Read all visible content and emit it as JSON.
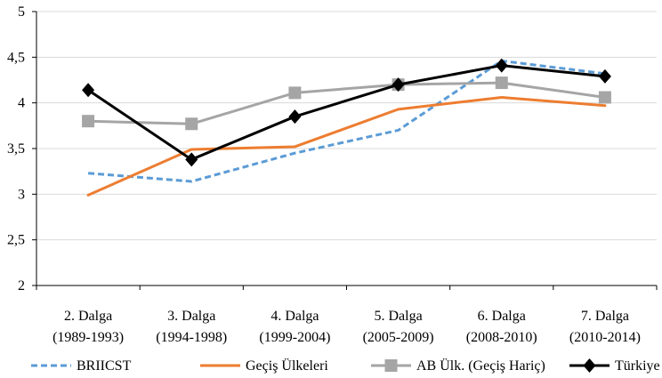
{
  "chart_data": {
    "type": "line",
    "title": "",
    "xlabel": "",
    "ylabel": "",
    "categories": [
      [
        "2. Dalga",
        "(1989-1993)"
      ],
      [
        "3. Dalga",
        "(1994-1998)"
      ],
      [
        "4. Dalga",
        "(1999-2004)"
      ],
      [
        "5. Dalga",
        "(2005-2009)"
      ],
      [
        "6. Dalga",
        "(2008-2010)"
      ],
      [
        "7. Dalga",
        "(2010-2014)"
      ]
    ],
    "ylim": [
      2,
      5
    ],
    "yticks": [
      "2",
      "2,5",
      "3",
      "3,5",
      "4",
      "4,5",
      "5"
    ],
    "grid": true,
    "legend_position": "bottom",
    "series": [
      {
        "name": "BRIICST",
        "values": [
          3.23,
          3.14,
          3.45,
          3.7,
          4.46,
          4.32
        ],
        "color": "#5b9bd5",
        "style": "dashed",
        "marker": "none"
      },
      {
        "name": "Geçiş Ülkeleri",
        "values": [
          2.99,
          3.49,
          3.52,
          3.93,
          4.06,
          3.97
        ],
        "color": "#ed7d31",
        "style": "solid",
        "marker": "none"
      },
      {
        "name": "AB Ülk. (Geçiş Hariç)",
        "values": [
          3.8,
          3.77,
          4.11,
          4.2,
          4.22,
          4.06
        ],
        "color": "#a5a5a5",
        "style": "solid",
        "marker": "square"
      },
      {
        "name": "Türkiye",
        "values": [
          4.14,
          3.38,
          3.85,
          4.2,
          4.41,
          4.29
        ],
        "color": "#000000",
        "style": "solid",
        "marker": "diamond"
      }
    ]
  }
}
